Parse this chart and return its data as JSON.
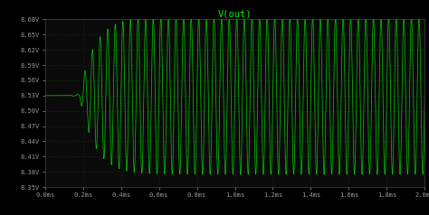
{
  "title": "V(out)",
  "title_color": "#00ee00",
  "bg_color": "#000000",
  "plot_bg_color": "#0a0a0a",
  "grid_color": "#1a3a1a",
  "line_color": "#00cc00",
  "axis_color": "#444444",
  "tick_color": "#999999",
  "xmin": 0.0,
  "xmax": 0.002,
  "ymin": 8.35,
  "ymax": 8.68,
  "yticks": [
    8.35,
    8.38,
    8.41,
    8.44,
    8.47,
    8.5,
    8.53,
    8.56,
    8.59,
    8.62,
    8.65,
    8.68
  ],
  "xticks": [
    0.0,
    0.0002,
    0.0004,
    0.0006,
    0.0008,
    0.001,
    0.0012,
    0.0014,
    0.0016,
    0.0018,
    0.002
  ],
  "xtick_labels": [
    "0.0ms",
    "0.2ms",
    "0.4ms",
    "0.6ms",
    "0.8ms",
    "1.0ms",
    "1.2ms",
    "1.4ms",
    "1.6ms",
    "1.8ms",
    "2.0ms"
  ],
  "ytick_labels": [
    "8.35V",
    "8.38V",
    "8.41V",
    "8.44V",
    "8.47V",
    "8.50V",
    "8.53V",
    "8.56V",
    "8.59V",
    "8.62V",
    "8.65V",
    "8.68V"
  ],
  "dc_level": 8.53,
  "osc_freq": 25000,
  "amplitude_final": 0.155,
  "onset_time": 0.00018,
  "rise_tau": 8e-05,
  "sample_rate": 2000000
}
